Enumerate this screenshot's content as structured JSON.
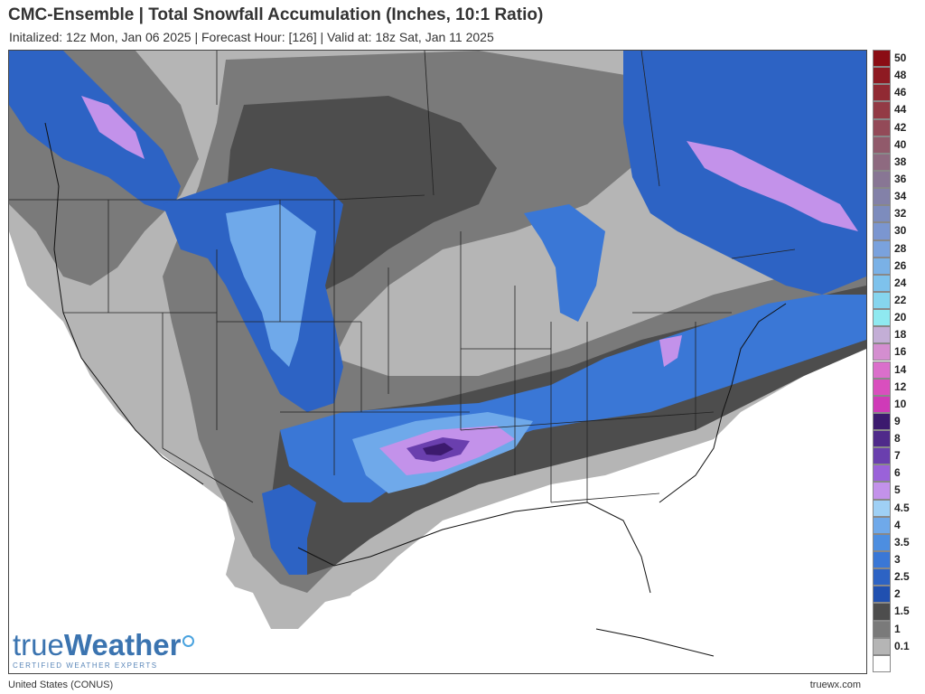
{
  "header": {
    "title": "CMC-Ensemble | Total Snowfall Accumulation (Inches, 10:1 Ratio)",
    "subtitle": "Initalized: 12z Mon, Jan 06 2025  |  Forecast Hour: [126]  |  Valid at: 18z Sat, Jan 11 2025"
  },
  "footer": {
    "region": "United States (CONUS)",
    "site": "truewx.com"
  },
  "logo": {
    "word_true": "true",
    "word_weather": "Weather",
    "tagline": "CERTIFIED WEATHER EXPERTS"
  },
  "legend": {
    "items": [
      {
        "label": "50",
        "color": "#8b0d14"
      },
      {
        "label": "48",
        "color": "#8e1a22"
      },
      {
        "label": "46",
        "color": "#912a33"
      },
      {
        "label": "44",
        "color": "#933a45"
      },
      {
        "label": "42",
        "color": "#934a58"
      },
      {
        "label": "40",
        "color": "#915a6b"
      },
      {
        "label": "38",
        "color": "#8e6a80"
      },
      {
        "label": "36",
        "color": "#887694"
      },
      {
        "label": "34",
        "color": "#8381a8"
      },
      {
        "label": "32",
        "color": "#7d8cbd"
      },
      {
        "label": "30",
        "color": "#7b96d0"
      },
      {
        "label": "28",
        "color": "#7aa2dd"
      },
      {
        "label": "26",
        "color": "#7ab1e6"
      },
      {
        "label": "24",
        "color": "#7ec2ec"
      },
      {
        "label": "22",
        "color": "#86d5ee"
      },
      {
        "label": "20",
        "color": "#8fe9f0"
      },
      {
        "label": "18",
        "color": "#c3aed6"
      },
      {
        "label": "16",
        "color": "#d48ed0"
      },
      {
        "label": "14",
        "color": "#da6fcb"
      },
      {
        "label": "12",
        "color": "#d94fbe"
      },
      {
        "label": "10",
        "color": "#cf3ab8"
      },
      {
        "label": "9",
        "color": "#3c1a6e"
      },
      {
        "label": "8",
        "color": "#4f2a8a"
      },
      {
        "label": "7",
        "color": "#6a3fae"
      },
      {
        "label": "6",
        "color": "#9a62d9"
      },
      {
        "label": "5",
        "color": "#c392ea"
      },
      {
        "label": "4.5",
        "color": "#9fd0f5"
      },
      {
        "label": "4",
        "color": "#6fa9ea"
      },
      {
        "label": "3.5",
        "color": "#4d8ee0"
      },
      {
        "label": "3",
        "color": "#3a77d6"
      },
      {
        "label": "2.5",
        "color": "#2d63c4"
      },
      {
        "label": "2",
        "color": "#2050b0"
      },
      {
        "label": "1.5",
        "color": "#4d4d4d"
      },
      {
        "label": "1",
        "color": "#7a7a7a"
      },
      {
        "label": "0.1",
        "color": "#b5b5b5"
      },
      {
        "label": "",
        "color": "#ffffff"
      }
    ]
  }
}
